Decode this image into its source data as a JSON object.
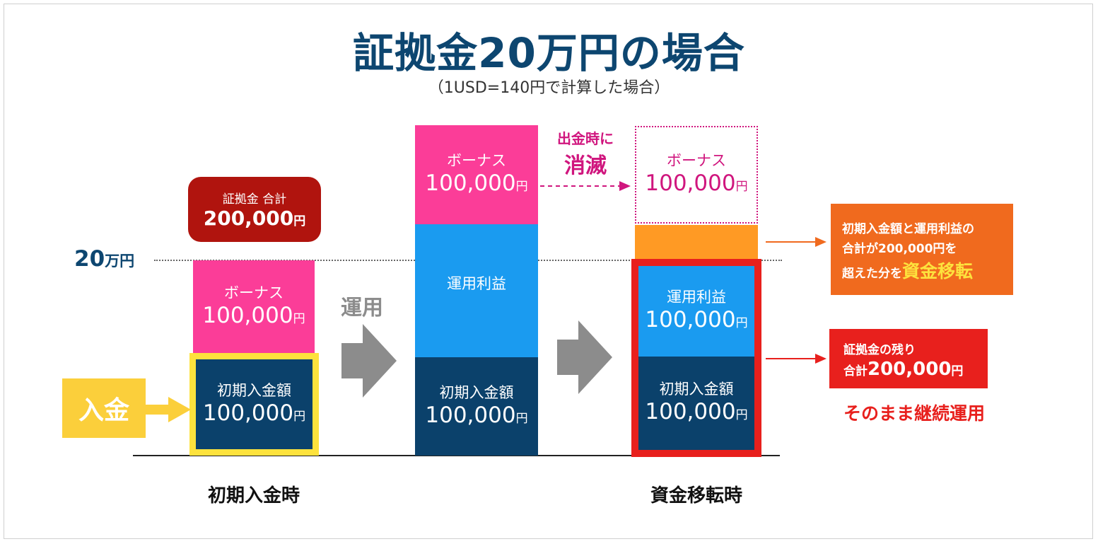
{
  "title": "証拠金20万円の場合",
  "subtitle": "（1USD=140円で計算した場合）",
  "yen_unit": "円",
  "level_line": {
    "value": "20",
    "unit": "万円"
  },
  "col1": {
    "total_badge": {
      "label": "証拠金 合計",
      "amount": "200,000"
    },
    "bonus": {
      "label": "ボーナス",
      "amount": "100,000"
    },
    "deposit": {
      "label": "初期入金額",
      "amount": "100,000"
    },
    "caption": "初期入金時"
  },
  "deposit_tag": "入金",
  "arrow1_label": "運用",
  "col2": {
    "bonus": {
      "label": "ボーナス",
      "amount": "100,000"
    },
    "profit": {
      "label": "運用利益"
    },
    "deposit": {
      "label": "初期入金額",
      "amount": "100,000"
    }
  },
  "vanish_note": {
    "line1": "出金時に",
    "line2": "消滅"
  },
  "col3": {
    "bonus": {
      "label": "ボーナス",
      "amount": "100,000"
    },
    "profit": {
      "label": "運用利益",
      "amount": "100,000"
    },
    "deposit": {
      "label": "初期入金額",
      "amount": "100,000"
    },
    "caption": "資金移転時"
  },
  "transfer_note": {
    "line1": "初期入金額と運用利益の",
    "line2": "合計が200,000円を",
    "line3": "超えた分を",
    "highlight": "資金移転"
  },
  "remaining_note": {
    "line1": "証拠金の残り",
    "line2_prefix": "合計",
    "amount": "200,000",
    "unit": "円"
  },
  "continue_note": "そのまま継続運用",
  "colors": {
    "navy": "#0b416b",
    "blue": "#1a9bf0",
    "pink": "#fb3d98",
    "orange": "#ff9a24",
    "transfer_orange": "#f06a1e",
    "red": "#e8201d",
    "dark_red": "#b0140e",
    "yellow": "#fde23d",
    "deposit_tag": "#fbcf3b",
    "vanish": "#d0167e",
    "gray_arrow": "#8c8c8c"
  }
}
